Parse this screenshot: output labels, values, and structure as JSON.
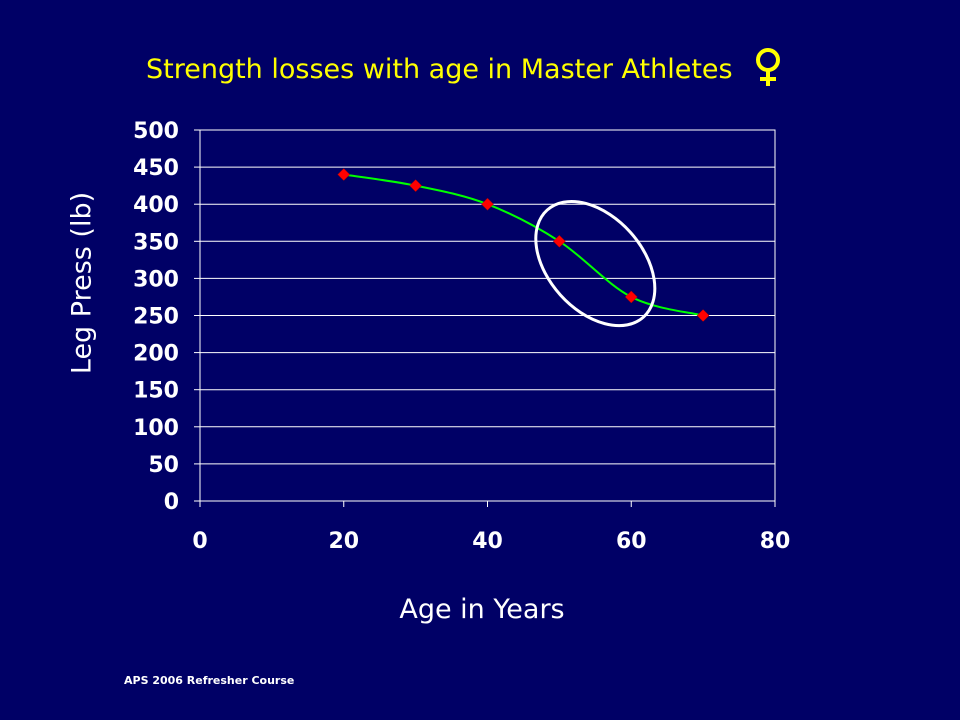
{
  "slide": {
    "title": "Strength losses with age in Master Athletes",
    "title_symbol": "female-symbol-icon",
    "footer": "APS 2006 Refresher Course"
  },
  "colors": {
    "background": "#000066",
    "title": "#ffff00",
    "text": "#ffffff",
    "line": "#00ff00",
    "marker": "#ff0000",
    "highlight": "#ffffff"
  },
  "chart_data": {
    "type": "line",
    "xlabel": "Age in Years",
    "ylabel": "Leg Press (lb)",
    "xlim": [
      0,
      80
    ],
    "ylim": [
      0,
      500
    ],
    "xticks": [
      0,
      20,
      40,
      60,
      80
    ],
    "yticks": [
      0,
      50,
      100,
      150,
      200,
      250,
      300,
      350,
      400,
      450,
      500
    ],
    "grid": "horizontal",
    "smooth": true,
    "marker": "diamond",
    "series": [
      {
        "x": [
          20,
          30,
          40,
          50,
          60,
          70
        ],
        "y": [
          440,
          425,
          400,
          350,
          275,
          250
        ]
      }
    ],
    "annotation": {
      "type": "ellipse",
      "description": "highlights points at ages 50–60",
      "center_x": 55,
      "center_y": 320
    }
  }
}
